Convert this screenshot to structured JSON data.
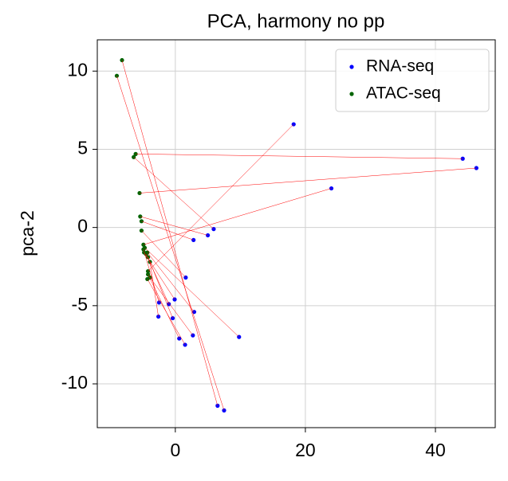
{
  "chart_data": {
    "type": "scatter",
    "title": "PCA, harmony no pp",
    "y_label": "pca-2",
    "xlim": [
      -12,
      49.2
    ],
    "ylim": [
      -12.8,
      12
    ],
    "xticks": [
      0,
      20,
      40
    ],
    "yticks": [
      -10,
      -5,
      0,
      5,
      10
    ],
    "grid": true,
    "legend": "upper right",
    "link_color": "#ff0000",
    "series": [
      {
        "name": "RNA-seq",
        "color": "#0000ff",
        "x": [
          18.2,
          44.2,
          46.3,
          24.0,
          5.9,
          5.0,
          2.8,
          1.6,
          -2.5,
          -0.1,
          -1.0,
          2.9,
          -0.4,
          -2.6,
          0.6,
          2.7,
          1.5,
          9.8,
          6.5,
          7.5
        ],
        "values": [
          6.6,
          4.4,
          3.8,
          2.5,
          -0.1,
          -0.5,
          -0.8,
          -3.2,
          -4.8,
          -4.6,
          -4.9,
          -5.4,
          -5.8,
          -5.7,
          -7.1,
          -6.9,
          -7.5,
          -7.0,
          -11.4,
          -11.7
        ]
      },
      {
        "name": "ATAC-seq",
        "color": "#006400",
        "x": [
          -4.2,
          -6.1,
          -5.5,
          -4.9,
          -6.4,
          -5.4,
          -5.2,
          -5.2,
          -4.9,
          -4.8,
          -4.5,
          -4.3,
          -4.2,
          -3.9,
          -4.2,
          -3.9,
          -4.3,
          -4.7,
          -8.2,
          -9.0
        ],
        "values": [
          -2.8,
          4.7,
          2.2,
          -1.1,
          4.5,
          0.7,
          0.4,
          -0.2,
          -1.4,
          -1.6,
          -1.7,
          -1.6,
          -1.9,
          -2.2,
          -3.0,
          -3.2,
          -3.3,
          -1.3,
          10.7,
          9.7
        ]
      }
    ]
  }
}
